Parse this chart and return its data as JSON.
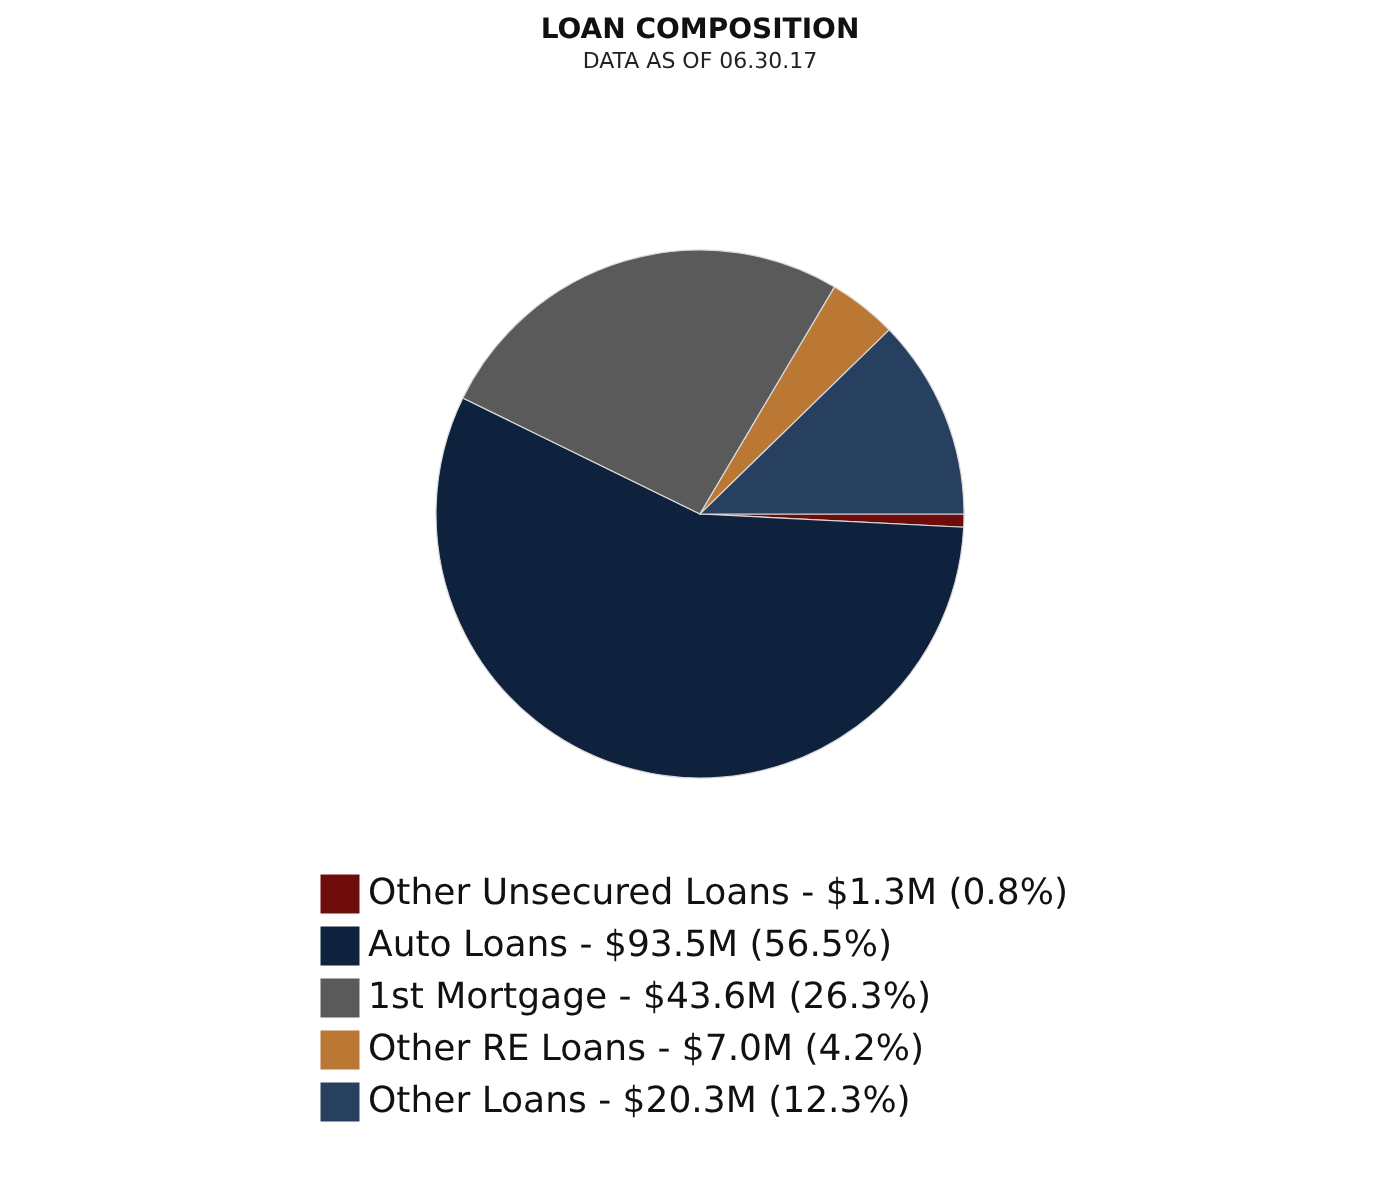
{
  "chart_data": {
    "type": "pie",
    "title": "LOAN COMPOSITION",
    "subtitle": "DATA AS OF 06.30.17",
    "categories": [
      "Other Unsecured Loans - $1.3M (0.8%)",
      "Auto Loans - $93.5M (56.5%)",
      "1st Mortgage - $43.6M (26.3%)",
      "Other RE Loans - $7.0M (4.2%)",
      "Other Loans - $20.3M (12.3%)"
    ],
    "values": [
      0.8,
      56.5,
      26.3,
      4.2,
      12.3
    ],
    "colors": [
      "#6e0c0c",
      "#0f223d",
      "#5a5a5a",
      "#bb7734",
      "#28405f"
    ],
    "legend": "bottom"
  }
}
